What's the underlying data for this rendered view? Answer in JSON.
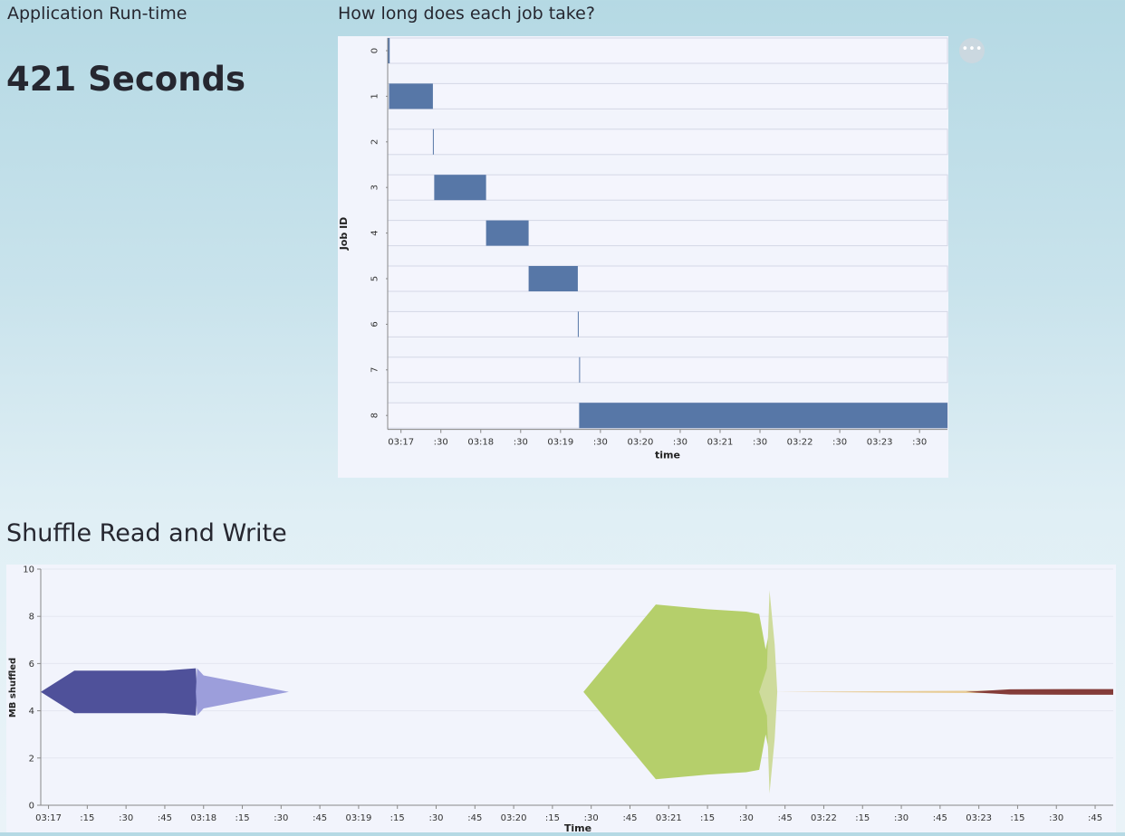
{
  "runtime": {
    "label": "Application Run-time",
    "value": "421 Seconds"
  },
  "jobs_chart": {
    "title": "How long does each job take?",
    "more_icon": "ellipsis-icon"
  },
  "shuffle_chart": {
    "title": "Shuffle Read and Write"
  },
  "chart_data": [
    {
      "type": "bar",
      "subtype": "gantt",
      "title": "How long does each job take?",
      "xlabel": "time",
      "ylabel": "Job ID",
      "x_tick_labels": [
        "03:17",
        ":30",
        "03:18",
        ":30",
        "03:19",
        ":30",
        "03:20",
        ":30",
        "03:21",
        ":30",
        "03:22",
        ":30",
        "03:23",
        ":30"
      ],
      "x_tick_seconds": [
        10,
        40,
        70,
        100,
        130,
        160,
        190,
        220,
        250,
        280,
        310,
        340,
        370,
        400
      ],
      "xlim": [
        0,
        421
      ],
      "categories": [
        "0",
        "1",
        "2",
        "3",
        "4",
        "5",
        "6",
        "7",
        "8"
      ],
      "series": [
        {
          "start_seconds": [
            0,
            1,
            34,
            35,
            74,
            106,
            143,
            144,
            144
          ],
          "end_seconds": [
            1.5,
            34,
            34.5,
            74,
            106,
            143,
            143.5,
            144.3,
            421
          ]
        }
      ],
      "color": "#5777a7"
    },
    {
      "type": "area",
      "subtype": "streamgraph",
      "xlabel": "Time",
      "ylabel": "MB shuffled",
      "ylim": [
        0,
        10
      ],
      "yticks": [
        0,
        2,
        4,
        6,
        8,
        10
      ],
      "x_tick_labels": [
        "03:17",
        ":15",
        ":30",
        ":45",
        "03:18",
        ":15",
        ":30",
        ":45",
        "03:19",
        ":15",
        ":30",
        ":45",
        "03:20",
        ":15",
        ":30",
        ":45",
        "03:21",
        ":15",
        ":30",
        ":45",
        "03:22",
        ":15",
        ":30",
        ":45",
        "03:23",
        ":15",
        ":30",
        ":45"
      ],
      "x_tick_seconds": [
        0,
        15,
        30,
        45,
        60,
        75,
        90,
        105,
        120,
        135,
        150,
        165,
        180,
        195,
        210,
        225,
        240,
        255,
        270,
        285,
        300,
        315,
        330,
        345,
        360,
        375,
        390,
        405
      ],
      "xlim": [
        -3,
        412
      ],
      "baseline": 4.8,
      "series": [
        {
          "color": "#4f519a",
          "x": [
            -3,
            10,
            25,
            45,
            57,
            57.5
          ],
          "y": [
            0,
            0.9,
            0.9,
            0.9,
            1.0,
            0
          ]
        },
        {
          "color": "#9c9edb",
          "x": [
            57,
            57.5,
            60,
            93
          ],
          "y": [
            0,
            1.0,
            0.7,
            0
          ]
        },
        {
          "color": "#b5cf6b",
          "x": [
            207,
            235,
            255,
            270,
            275,
            277.5,
            279,
            281
          ],
          "y": [
            0,
            3.7,
            3.5,
            3.4,
            3.3,
            1.8,
            2.6,
            0
          ]
        },
        {
          "color": "#cedb9c",
          "x": [
            275,
            278,
            279,
            281,
            282
          ],
          "y": [
            0,
            1.0,
            4.3,
            2.0,
            0
          ]
        },
        {
          "color": "#e7cb94",
          "x": [
            281,
            360,
            372,
            395,
            412
          ],
          "y": [
            0,
            0.05,
            0.08,
            0.1,
            0.1
          ]
        },
        {
          "color": "#843c39",
          "x": [
            355,
            372,
            395,
            412
          ],
          "y": [
            0,
            0.11,
            0.12,
            0.12
          ]
        }
      ]
    }
  ]
}
